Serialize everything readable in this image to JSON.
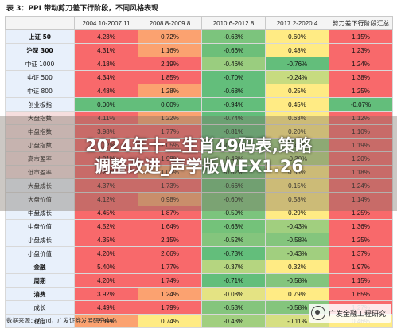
{
  "caption": "表 3：PPI 带动剪刀差下行阶段，不同风格表现",
  "colors": {
    "red": "#f8696b",
    "orange": "#fba270",
    "yellow": "#ffeb84",
    "green": "#63be7b"
  },
  "table": {
    "headers": [
      "",
      "2004.10-2007.11",
      "2008.8-2009.8",
      "2010.6-2012.8",
      "2017.2-2020.4",
      "剪刀差下行阶段汇总"
    ],
    "rows": [
      {
        "label": "上证 50",
        "bold": true,
        "pink": false,
        "values": [
          "4.23%",
          "0.72%",
          "-0.63%",
          "0.60%",
          "1.15%"
        ],
        "colors": [
          "#f8696b",
          "#fba270",
          "#7cc47d",
          "#ffeb84",
          "#f8696b"
        ]
      },
      {
        "label": "沪深 300",
        "bold": true,
        "pink": false,
        "values": [
          "4.31%",
          "1.16%",
          "-0.66%",
          "0.48%",
          "1.23%"
        ],
        "colors": [
          "#f8696b",
          "#fba270",
          "#6dbf79",
          "#ffeb84",
          "#f8696b"
        ]
      },
      {
        "label": "中证 1000",
        "bold": false,
        "pink": false,
        "values": [
          "4.18%",
          "2.19%",
          "-0.46%",
          "-0.76%",
          "1.24%"
        ],
        "colors": [
          "#f8696b",
          "#f8696b",
          "#9acd7f",
          "#63be7b",
          "#f8696b"
        ]
      },
      {
        "label": "中证 500",
        "bold": false,
        "pink": false,
        "values": [
          "4.34%",
          "1.85%",
          "-0.70%",
          "-0.24%",
          "1.38%"
        ],
        "colors": [
          "#f8696b",
          "#f8696b",
          "#63be7b",
          "#c7db80",
          "#f8696b"
        ]
      },
      {
        "label": "中证 800",
        "bold": false,
        "pink": false,
        "values": [
          "4.48%",
          "1.28%",
          "-0.68%",
          "0.25%",
          "1.25%"
        ],
        "colors": [
          "#f8696b",
          "#fba270",
          "#63be7b",
          "#ffeb84",
          "#f8696b"
        ]
      },
      {
        "label": "创业板指",
        "bold": false,
        "pink": false,
        "values": [
          "0.00%",
          "0.00%",
          "-0.94%",
          "0.45%",
          "-0.07%"
        ],
        "colors": [
          "#63be7b",
          "#63be7b",
          "#63be7b",
          "#ffeb84",
          "#63be7b"
        ]
      },
      {
        "label": "大盘指数",
        "bold": false,
        "pink": true,
        "values": [
          "4.11%",
          "1.22%",
          "-0.74%",
          "0.63%",
          "1.12%"
        ],
        "colors": [
          "#f8696b",
          "#fba270",
          "#63be7b",
          "#ffeb84",
          "#f8696b"
        ]
      },
      {
        "label": "中盘指数",
        "bold": false,
        "pink": true,
        "values": [
          "3.98%",
          "1.77%",
          "-0.81%",
          "0.20%",
          "1.10%"
        ],
        "colors": [
          "#f8696b",
          "#f8696b",
          "#63be7b",
          "#ffeb84",
          "#f8696b"
        ]
      },
      {
        "label": "小盘指数",
        "bold": false,
        "pink": true,
        "values": [
          "4.02%",
          "2.05%",
          "-0.52%",
          "-0.45%",
          "1.19%"
        ],
        "colors": [
          "#f8696b",
          "#f8696b",
          "#84c57d",
          "#9acd7f",
          "#f8696b"
        ]
      },
      {
        "label": "高市盈率",
        "bold": false,
        "pink": true,
        "values": [
          "4.01%",
          "1.98%",
          "-0.48%",
          "-0.30%",
          "1.20%"
        ],
        "colors": [
          "#f8696b",
          "#f8696b",
          "#8fc97e",
          "#b5d580",
          "#f8696b"
        ]
      },
      {
        "label": "低市盈率",
        "bold": false,
        "pink": true,
        "values": [
          "4.20%",
          "1.05%",
          "-0.62%",
          "0.55%",
          "1.18%"
        ],
        "colors": [
          "#f8696b",
          "#fba270",
          "#74c27a",
          "#ffeb84",
          "#f8696b"
        ]
      },
      {
        "label": "大盘成长",
        "bold": false,
        "pink": false,
        "values": [
          "4.37%",
          "1.73%",
          "-0.66%",
          "0.15%",
          "1.24%"
        ],
        "colors": [
          "#f8696b",
          "#f8696b",
          "#6dbf79",
          "#ffeb84",
          "#f8696b"
        ]
      },
      {
        "label": "大盘价值",
        "bold": false,
        "pink": false,
        "values": [
          "4.12%",
          "0.98%",
          "-0.60%",
          "0.58%",
          "1.14%"
        ],
        "colors": [
          "#f8696b",
          "#fba270",
          "#7cc47d",
          "#ffeb84",
          "#f8696b"
        ]
      },
      {
        "label": "中盘成长",
        "bold": false,
        "pink": false,
        "values": [
          "4.45%",
          "1.87%",
          "-0.59%",
          "0.29%",
          "1.25%"
        ],
        "colors": [
          "#f8696b",
          "#f8696b",
          "#7cc47d",
          "#ffeb84",
          "#f8696b"
        ]
      },
      {
        "label": "中盘价值",
        "bold": false,
        "pink": false,
        "values": [
          "4.52%",
          "1.64%",
          "-0.63%",
          "-0.43%",
          "1.36%"
        ],
        "colors": [
          "#f8696b",
          "#f8696b",
          "#74c27a",
          "#a1cf7f",
          "#f8696b"
        ]
      },
      {
        "label": "小盘成长",
        "bold": false,
        "pink": false,
        "values": [
          "4.35%",
          "2.15%",
          "-0.52%",
          "-0.58%",
          "1.25%"
        ],
        "colors": [
          "#f8696b",
          "#f8696b",
          "#84c57d",
          "#84c57d",
          "#f8696b"
        ]
      },
      {
        "label": "小盘价值",
        "bold": false,
        "pink": false,
        "values": [
          "4.20%",
          "2.66%",
          "-0.73%",
          "-0.43%",
          "1.37%"
        ],
        "colors": [
          "#f8696b",
          "#f8696b",
          "#63be7b",
          "#a1cf7f",
          "#f8696b"
        ]
      },
      {
        "label": "金融",
        "bold": true,
        "pink": false,
        "values": [
          "5.40%",
          "1.77%",
          "-0.37%",
          "0.32%",
          "1.97%"
        ],
        "colors": [
          "#f8696b",
          "#f8696b",
          "#b5d580",
          "#ffeb84",
          "#f8696b"
        ]
      },
      {
        "label": "周期",
        "bold": true,
        "pink": false,
        "values": [
          "4.20%",
          "1.74%",
          "-0.71%",
          "-0.58%",
          "1.15%"
        ],
        "colors": [
          "#f8696b",
          "#f8696b",
          "#63be7b",
          "#84c57d",
          "#f8696b"
        ]
      },
      {
        "label": "消费",
        "bold": true,
        "pink": false,
        "values": [
          "3.92%",
          "1.24%",
          "-0.08%",
          "0.79%",
          "1.65%"
        ],
        "colors": [
          "#f8696b",
          "#fba270",
          "#e4e383",
          "#ffeb84",
          "#f8696b"
        ]
      },
      {
        "label": "成长",
        "bold": false,
        "pink": false,
        "values": [
          "4.49%",
          "1.79%",
          "-0.53%",
          "-0.58%",
          "1.27%"
        ],
        "colors": [
          "#f8696b",
          "#f8696b",
          "#84c57d",
          "#84c57d",
          "#f8696b"
        ]
      },
      {
        "label": "稳定",
        "bold": false,
        "pink": false,
        "values": [
          "2.89%",
          "0.74%",
          "-0.43%",
          "-0.11%",
          "0.46%"
        ],
        "colors": [
          "#fba270",
          "#ffeb84",
          "#a1cf7f",
          "#d6df82",
          "#ffeb84"
        ]
      }
    ]
  },
  "footer": "数据来源：Wind，广发证券发展研究中心",
  "overlay": {
    "line1": "2024年十二生肖49码表,策略",
    "line2": "调整改进_声学版WEX1.26"
  },
  "logo_text": "广发金融工程研究"
}
